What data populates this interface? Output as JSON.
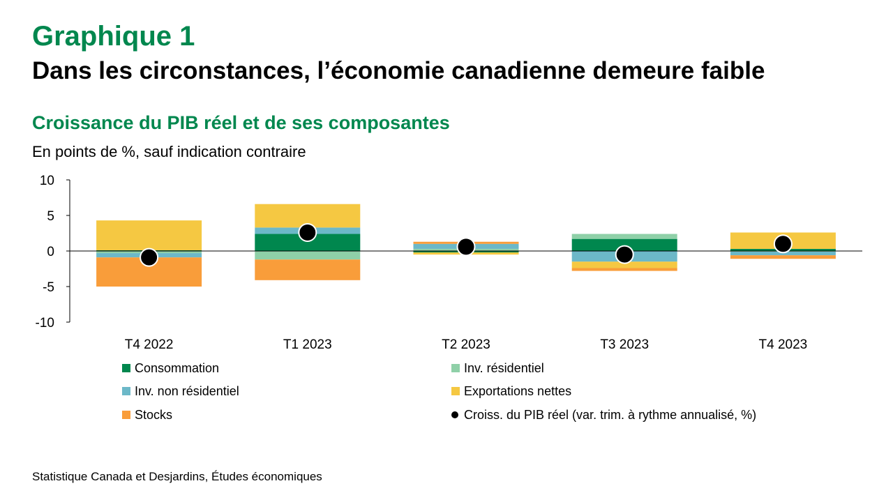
{
  "header": {
    "label": "Graphique 1",
    "title": "Dans les circonstances, l’économie canadienne demeure faible"
  },
  "footer": {
    "source": "Statistique Canada et Desjardins, Études économiques"
  },
  "chart_data": {
    "type": "bar",
    "stacked": true,
    "title": "Croissance du PIB réel et de ses composantes",
    "subtitle": "En points de %, sauf indication contraire",
    "ylim": [
      -10,
      10
    ],
    "yticks": [
      10,
      5,
      0,
      -5,
      -10
    ],
    "categories": [
      "T4 2022",
      "T1 2023",
      "T2 2023",
      "T3 2023",
      "T4 2023"
    ],
    "series": [
      {
        "name": "Consommation",
        "color": "#00874e",
        "values": [
          0.1,
          2.4,
          -0.2,
          1.7,
          0.3
        ]
      },
      {
        "name": "Inv. résidentiel",
        "color": "#8fd0a8",
        "values": [
          -0.3,
          -1.2,
          0.3,
          0.7,
          -0.1
        ]
      },
      {
        "name": "Inv. non résidentiel",
        "color": "#6cb8c8",
        "values": [
          -0.6,
          0.9,
          0.7,
          -1.5,
          -0.5
        ]
      },
      {
        "name": "Exportations nettes",
        "color": "#f5c842",
        "values": [
          4.2,
          3.3,
          -0.3,
          -0.9,
          2.3
        ]
      },
      {
        "name": "Stocks",
        "color": "#f99d3a",
        "values": [
          -4.1,
          -2.9,
          0.3,
          -0.4,
          -0.5
        ]
      }
    ],
    "line": {
      "name": "Croiss. du PIB réel (var. trim. à rythme annualisé, %)",
      "color": "#000000",
      "values": [
        -0.9,
        2.6,
        0.6,
        -0.5,
        1.0
      ]
    }
  }
}
